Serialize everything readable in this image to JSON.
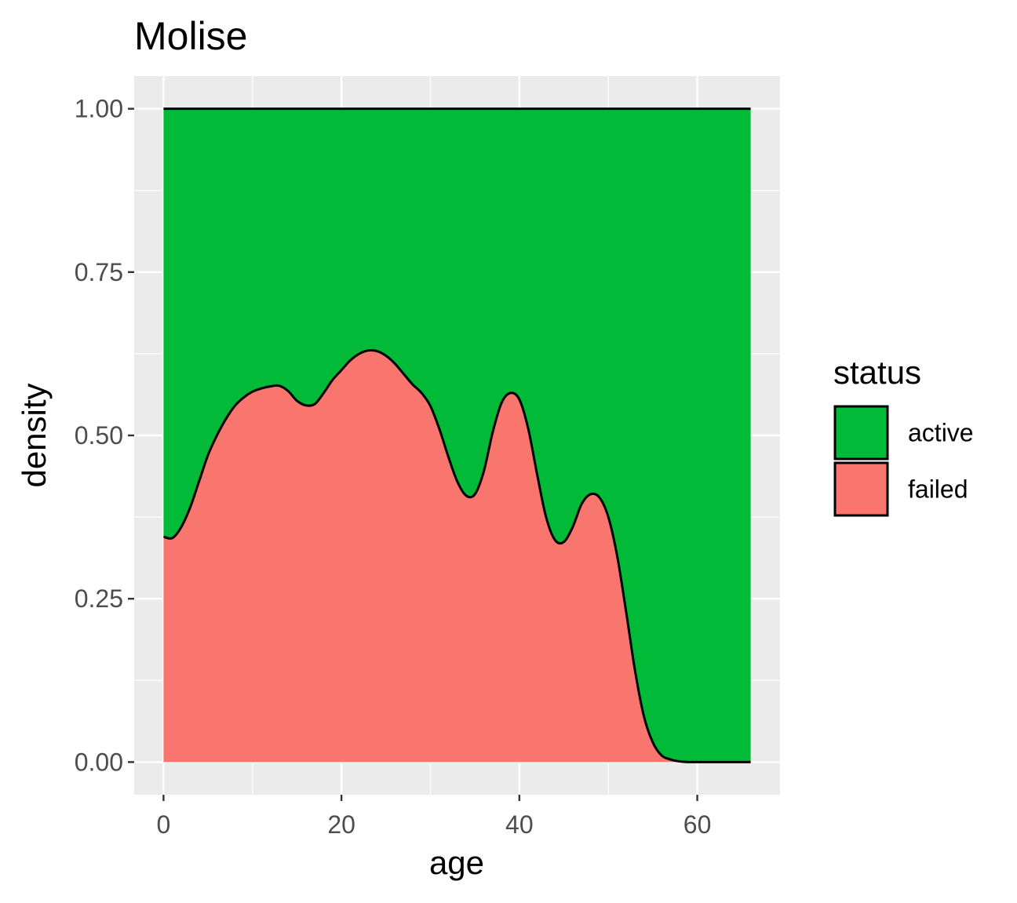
{
  "chart_data": {
    "type": "area",
    "subtype": "stacked-proportional-density",
    "title": "Molise",
    "xlabel": "age",
    "ylabel": "density",
    "xlim": [
      -3.3,
      69.3
    ],
    "ylim": [
      -0.05,
      1.05
    ],
    "x_ticks": [
      0,
      20,
      40,
      60
    ],
    "x_tick_labels": [
      "0",
      "20",
      "40",
      "60"
    ],
    "y_ticks": [
      0,
      0.25,
      0.5,
      0.75,
      1.0
    ],
    "y_tick_labels": [
      "0.00",
      "0.25",
      "0.50",
      "0.75",
      "1.00"
    ],
    "grid": true,
    "legend": {
      "title": "status",
      "position": "right",
      "entries": [
        {
          "label": "active",
          "color": "#00BA38"
        },
        {
          "label": "failed",
          "color": "#F8766D"
        }
      ]
    },
    "series": [
      {
        "name": "failed",
        "color": "#F8766D",
        "x": [
          0,
          1,
          2,
          3,
          4,
          5,
          6,
          7,
          8,
          9,
          10,
          11,
          12,
          13,
          14,
          15,
          16,
          17,
          18,
          19,
          20,
          21,
          22,
          23,
          24,
          25,
          26,
          27,
          28,
          29,
          30,
          31,
          32,
          33,
          34,
          35,
          36,
          37,
          38,
          39,
          40,
          41,
          42,
          43,
          44,
          45,
          46,
          47,
          48,
          49,
          50,
          51,
          52,
          53,
          54,
          55,
          56,
          57,
          58,
          59,
          60,
          62,
          64,
          66
        ],
        "values": [
          0.345,
          0.343,
          0.36,
          0.39,
          0.43,
          0.47,
          0.5,
          0.525,
          0.545,
          0.558,
          0.567,
          0.572,
          0.575,
          0.576,
          0.568,
          0.553,
          0.546,
          0.548,
          0.565,
          0.585,
          0.6,
          0.615,
          0.625,
          0.63,
          0.629,
          0.622,
          0.61,
          0.594,
          0.578,
          0.565,
          0.545,
          0.51,
          0.468,
          0.43,
          0.408,
          0.41,
          0.445,
          0.505,
          0.55,
          0.565,
          0.555,
          0.51,
          0.44,
          0.375,
          0.34,
          0.337,
          0.36,
          0.395,
          0.41,
          0.405,
          0.375,
          0.315,
          0.23,
          0.14,
          0.07,
          0.03,
          0.01,
          0.004,
          0.001,
          0.0,
          0.0,
          0.0,
          0.0,
          0.0
        ]
      },
      {
        "name": "active",
        "color": "#00BA38",
        "upper": 1.0
      }
    ]
  }
}
